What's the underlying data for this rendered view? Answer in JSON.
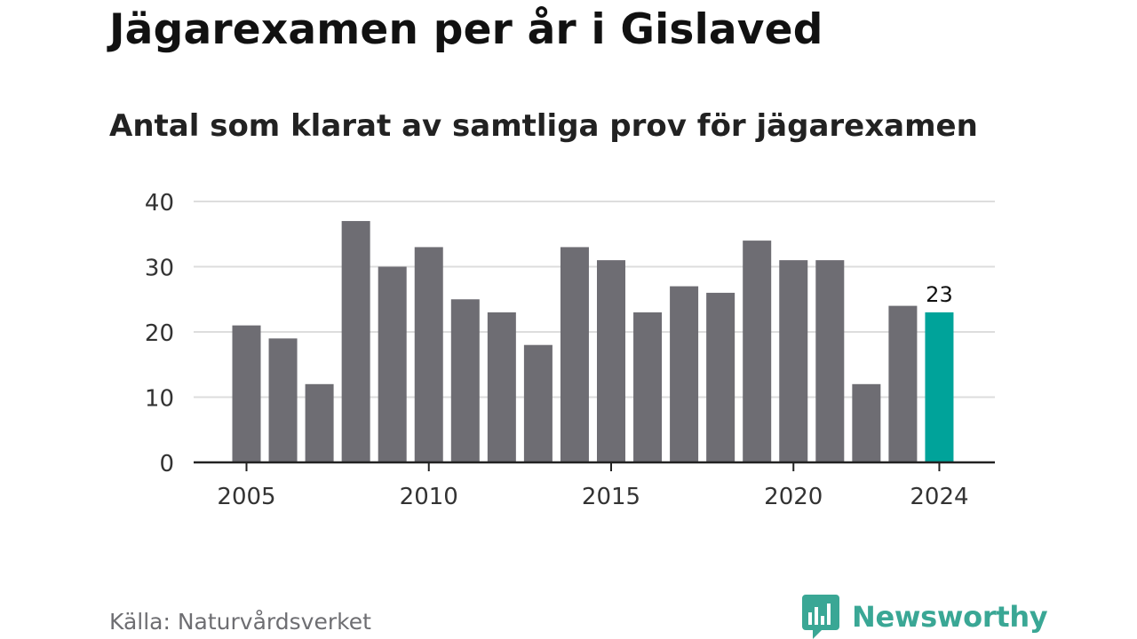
{
  "header": {
    "title": "Jägarexamen per år i Gislaved",
    "subtitle": "Antal som klarat av samtliga prov för jägarexamen"
  },
  "footer": {
    "source": "Källa: Naturvårdsverket",
    "brand": "Newsworthy",
    "brand_icon": "newsworthy-logo-icon"
  },
  "colors": {
    "bar": "#6e6d73",
    "highlight": "#00a39a",
    "grid": "#dddddd",
    "axis": "#222222",
    "brand": "#3aa795"
  },
  "chart_data": {
    "type": "bar",
    "title": "Jägarexamen per år i Gislaved",
    "subtitle": "Antal som klarat av samtliga prov för jägarexamen",
    "categories": [
      2005,
      2006,
      2007,
      2008,
      2009,
      2010,
      2011,
      2012,
      2013,
      2014,
      2015,
      2016,
      2017,
      2018,
      2019,
      2020,
      2021,
      2022,
      2023,
      2024
    ],
    "values": [
      21,
      19,
      12,
      37,
      30,
      33,
      25,
      23,
      18,
      33,
      31,
      23,
      27,
      26,
      34,
      31,
      31,
      12,
      24,
      23
    ],
    "highlight_category": 2024,
    "data_labels": [
      {
        "category": 2024,
        "text": "23"
      }
    ],
    "x_tick_labels": [
      "2005",
      "2010",
      "2015",
      "2020",
      "2024"
    ],
    "y_ticks": [
      0,
      10,
      20,
      30,
      40
    ],
    "ylim": [
      0,
      40
    ],
    "xlabel": "",
    "ylabel": "",
    "grid": true,
    "legend": "none"
  }
}
